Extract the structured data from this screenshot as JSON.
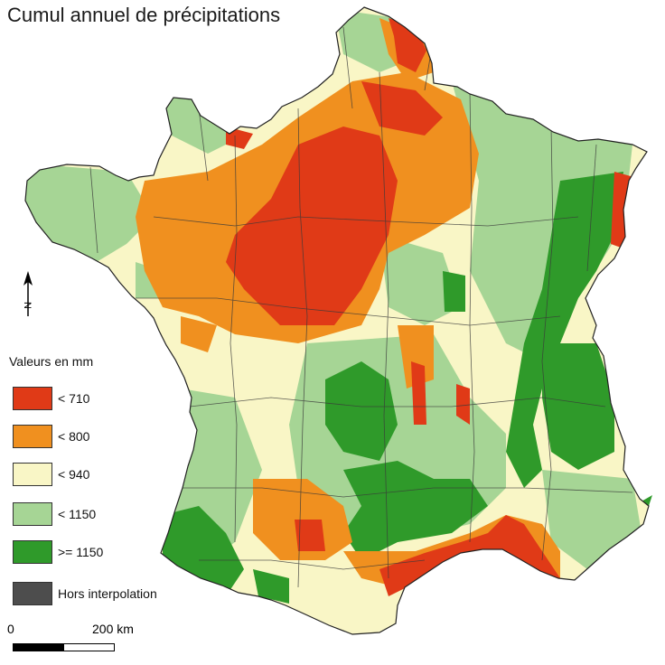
{
  "title": "Cumul annuel de précipitations",
  "legend": {
    "heading": "Valeurs en mm",
    "items": [
      {
        "label": "< 710",
        "color": "#e03a17"
      },
      {
        "label": "< 800",
        "color": "#f0901f"
      },
      {
        "label": "< 940",
        "color": "#f9f6c6"
      },
      {
        "label": "< 1150",
        "color": "#a6d595"
      },
      {
        "label": ">= 1150",
        "color": "#2f9a2a"
      },
      {
        "label": "Hors interpolation",
        "color": "#4d4d4d"
      }
    ]
  },
  "north_arrow": {
    "letter": "N",
    "icon": "north-arrow-icon"
  },
  "scale_bar": {
    "start_label": "0",
    "end_label": "200 km"
  },
  "colors": {
    "border": "#3a3a3a",
    "background": "#ffffff"
  }
}
